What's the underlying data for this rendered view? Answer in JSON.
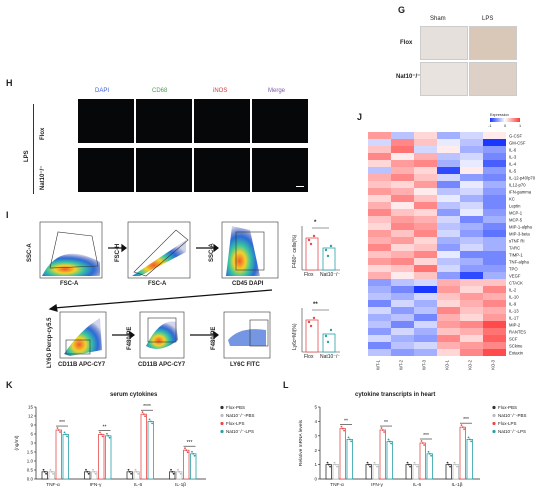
{
  "panel_g": {
    "label": "G",
    "cols": [
      "Sham",
      "LPS"
    ],
    "rows": [
      "Flox",
      "Nat10⁻/⁻"
    ]
  },
  "panel_h": {
    "label": "H",
    "channels": [
      {
        "name": "DAPI",
        "color": "#3b5bd6"
      },
      {
        "name": "CD68",
        "color": "#4aa04a"
      },
      {
        "name": "iNOS",
        "color": "#d43a3a"
      },
      {
        "name": "Merge",
        "color": "#7a5aa8"
      }
    ],
    "group": "LPS",
    "rows": [
      "Flox",
      "Nat10⁻/⁻"
    ]
  },
  "panel_i": {
    "label": "I",
    "plots": [
      {
        "x": "FSC-A",
        "y": "SSC-A"
      },
      {
        "x": "FSC-A",
        "y": "FSC-H"
      },
      {
        "x": "CD45 DAPI",
        "y": "SSC-A"
      },
      {
        "x": "CD11B APC-CY7",
        "y": "LY6G Percp-cy5.5"
      },
      {
        "x": "CD11B APC-CY7",
        "y": "F480 PE"
      },
      {
        "x": "LY6C FITC",
        "y": "F480 PE"
      }
    ],
    "bar_top": {
      "ylabel": "F480⁺ cells(%)",
      "sig": "*",
      "groups": [
        "Flox",
        "Nat10⁻/⁻"
      ]
    },
    "bar_bottom": {
      "ylabel": "Ly6cʰⁱMI(%)",
      "sig": "**",
      "groups": [
        "Flox",
        "Nat10⁻/⁻"
      ]
    }
  },
  "panel_j": {
    "label": "J",
    "legend_title": "Expression",
    "legend_ticks": [
      "-1",
      "0",
      "1"
    ],
    "columns": [
      "WT-1",
      "WT-2",
      "WT-3",
      "KO-1",
      "KO-2",
      "KO-3"
    ],
    "rows": [
      "G-CSF",
      "GM-CSF",
      "IL-6",
      "IL-3",
      "IL-4",
      "IL-5",
      "IL-12-p40/p70",
      "IL12-p70",
      "IFN-gamma",
      "KC",
      "Leptin",
      "MCP-1",
      "MCP-5",
      "MIP-1-alpha",
      "MIP-3-beta",
      "sTNF RI",
      "TARC",
      "TIMP-1",
      "TNF-alpha",
      "TPO",
      "VEGF",
      "CTACK",
      "IL-2",
      "IL-10",
      "IL-9",
      "IL-13",
      "IL-17",
      "MIP-2",
      "RANTES",
      "SCF",
      "SCkine",
      "Eotaxin"
    ],
    "values": [
      [
        0.5,
        -0.3,
        0.2,
        -0.4,
        -0.2,
        0.1
      ],
      [
        -0.2,
        0.6,
        0.3,
        -0.1,
        -0.3,
        -1.0
      ],
      [
        0.3,
        0.7,
        -0.2,
        0.1,
        -0.4,
        -0.5
      ],
      [
        0.6,
        0.1,
        0.4,
        -0.3,
        -0.2,
        -0.6
      ],
      [
        0.2,
        0.5,
        0.6,
        -0.4,
        -0.1,
        -0.8
      ],
      [
        -0.3,
        0.4,
        0.2,
        -0.9,
        0.1,
        -0.5
      ],
      [
        0.4,
        0.6,
        0.3,
        -0.2,
        -0.5,
        -0.6
      ],
      [
        0.3,
        0.2,
        0.5,
        -0.6,
        -0.1,
        -0.4
      ],
      [
        0.5,
        0.4,
        0.1,
        -0.3,
        -0.2,
        -0.5
      ],
      [
        0.2,
        0.6,
        0.3,
        -0.1,
        -0.4,
        -0.6
      ],
      [
        0.4,
        0.1,
        0.6,
        -0.3,
        -0.2,
        -0.6
      ],
      [
        0.6,
        0.3,
        0.2,
        -0.5,
        -0.1,
        -0.5
      ],
      [
        0.3,
        0.5,
        0.4,
        -0.2,
        -0.6,
        -0.4
      ],
      [
        0.2,
        0.6,
        0.5,
        -0.3,
        -0.4,
        -0.6
      ],
      [
        0.5,
        0.3,
        0.6,
        -0.2,
        -0.5,
        -0.7
      ],
      [
        0.4,
        0.5,
        0.2,
        -0.4,
        -0.3,
        -0.4
      ],
      [
        0.6,
        0.2,
        0.3,
        -0.5,
        -0.2,
        -0.4
      ],
      [
        0.3,
        0.4,
        0.6,
        -0.1,
        -0.6,
        -0.6
      ],
      [
        0.5,
        0.6,
        0.2,
        -0.3,
        -0.4,
        -0.6
      ],
      [
        0.2,
        0.3,
        0.7,
        -0.2,
        -0.5,
        -0.5
      ],
      [
        0.4,
        0.1,
        0.3,
        -0.5,
        -0.9,
        -0.4
      ],
      [
        -0.5,
        -0.3,
        -0.2,
        0.4,
        0.3,
        0.3
      ],
      [
        -0.4,
        -0.6,
        -1.0,
        0.5,
        0.2,
        0.6
      ],
      [
        -0.3,
        -0.4,
        -0.2,
        0.3,
        0.5,
        0.4
      ],
      [
        -0.6,
        -0.2,
        -0.4,
        0.2,
        0.4,
        0.6
      ],
      [
        -0.2,
        -0.5,
        -0.3,
        0.6,
        0.3,
        0.4
      ],
      [
        -0.4,
        -0.3,
        -0.6,
        0.4,
        0.2,
        0.5
      ],
      [
        -0.3,
        -0.6,
        -0.2,
        0.5,
        0.6,
        0.9
      ],
      [
        -0.5,
        -0.2,
        -0.4,
        0.3,
        0.4,
        0.7
      ],
      [
        -0.2,
        -0.4,
        -0.5,
        0.6,
        0.2,
        0.8
      ],
      [
        -0.6,
        -0.3,
        -0.2,
        0.4,
        0.5,
        0.6
      ],
      [
        -0.3,
        -0.5,
        -0.4,
        0.2,
        0.6,
        0.9
      ]
    ]
  },
  "panel_k": {
    "label": "K",
    "title": "serum cytokines",
    "ylabel": "(ng/ml)",
    "yticks": [
      "0.0",
      "0.5",
      "1.0",
      "1.5",
      "3",
      "6",
      "9",
      "12",
      "15"
    ],
    "categories": [
      "TNF-α",
      "IFN-γ",
      "IL-6",
      "IL-1β"
    ],
    "sig": [
      "***",
      "**",
      "****",
      "***"
    ],
    "legend": [
      "Flox-PBS",
      "Nat10⁻/⁻-PBS",
      "Flox-LPS",
      "Nat10⁻/⁻-LPS"
    ]
  },
  "panel_l": {
    "label": "L",
    "title": "cytokine transcripts in heart",
    "ylabel": "Relative mRNA levels",
    "yticks": [
      "0",
      "1",
      "2",
      "3",
      "4",
      "5"
    ],
    "categories": [
      "TNF-α",
      "IFN-γ",
      "IL-6",
      "IL-1β"
    ],
    "sig": [
      "**",
      "**",
      "***",
      "***"
    ],
    "legend": [
      "Flox-PBS",
      "Nat10⁻/⁻-PBS",
      "Flox-LPS",
      "Nat10⁻/⁻-LPS"
    ]
  },
  "colors": {
    "bar_fill": "#ffffff",
    "c1": "#333333",
    "c2": "#bbbbbb",
    "c3": "#e74c4c",
    "c4": "#2aa0a8"
  }
}
